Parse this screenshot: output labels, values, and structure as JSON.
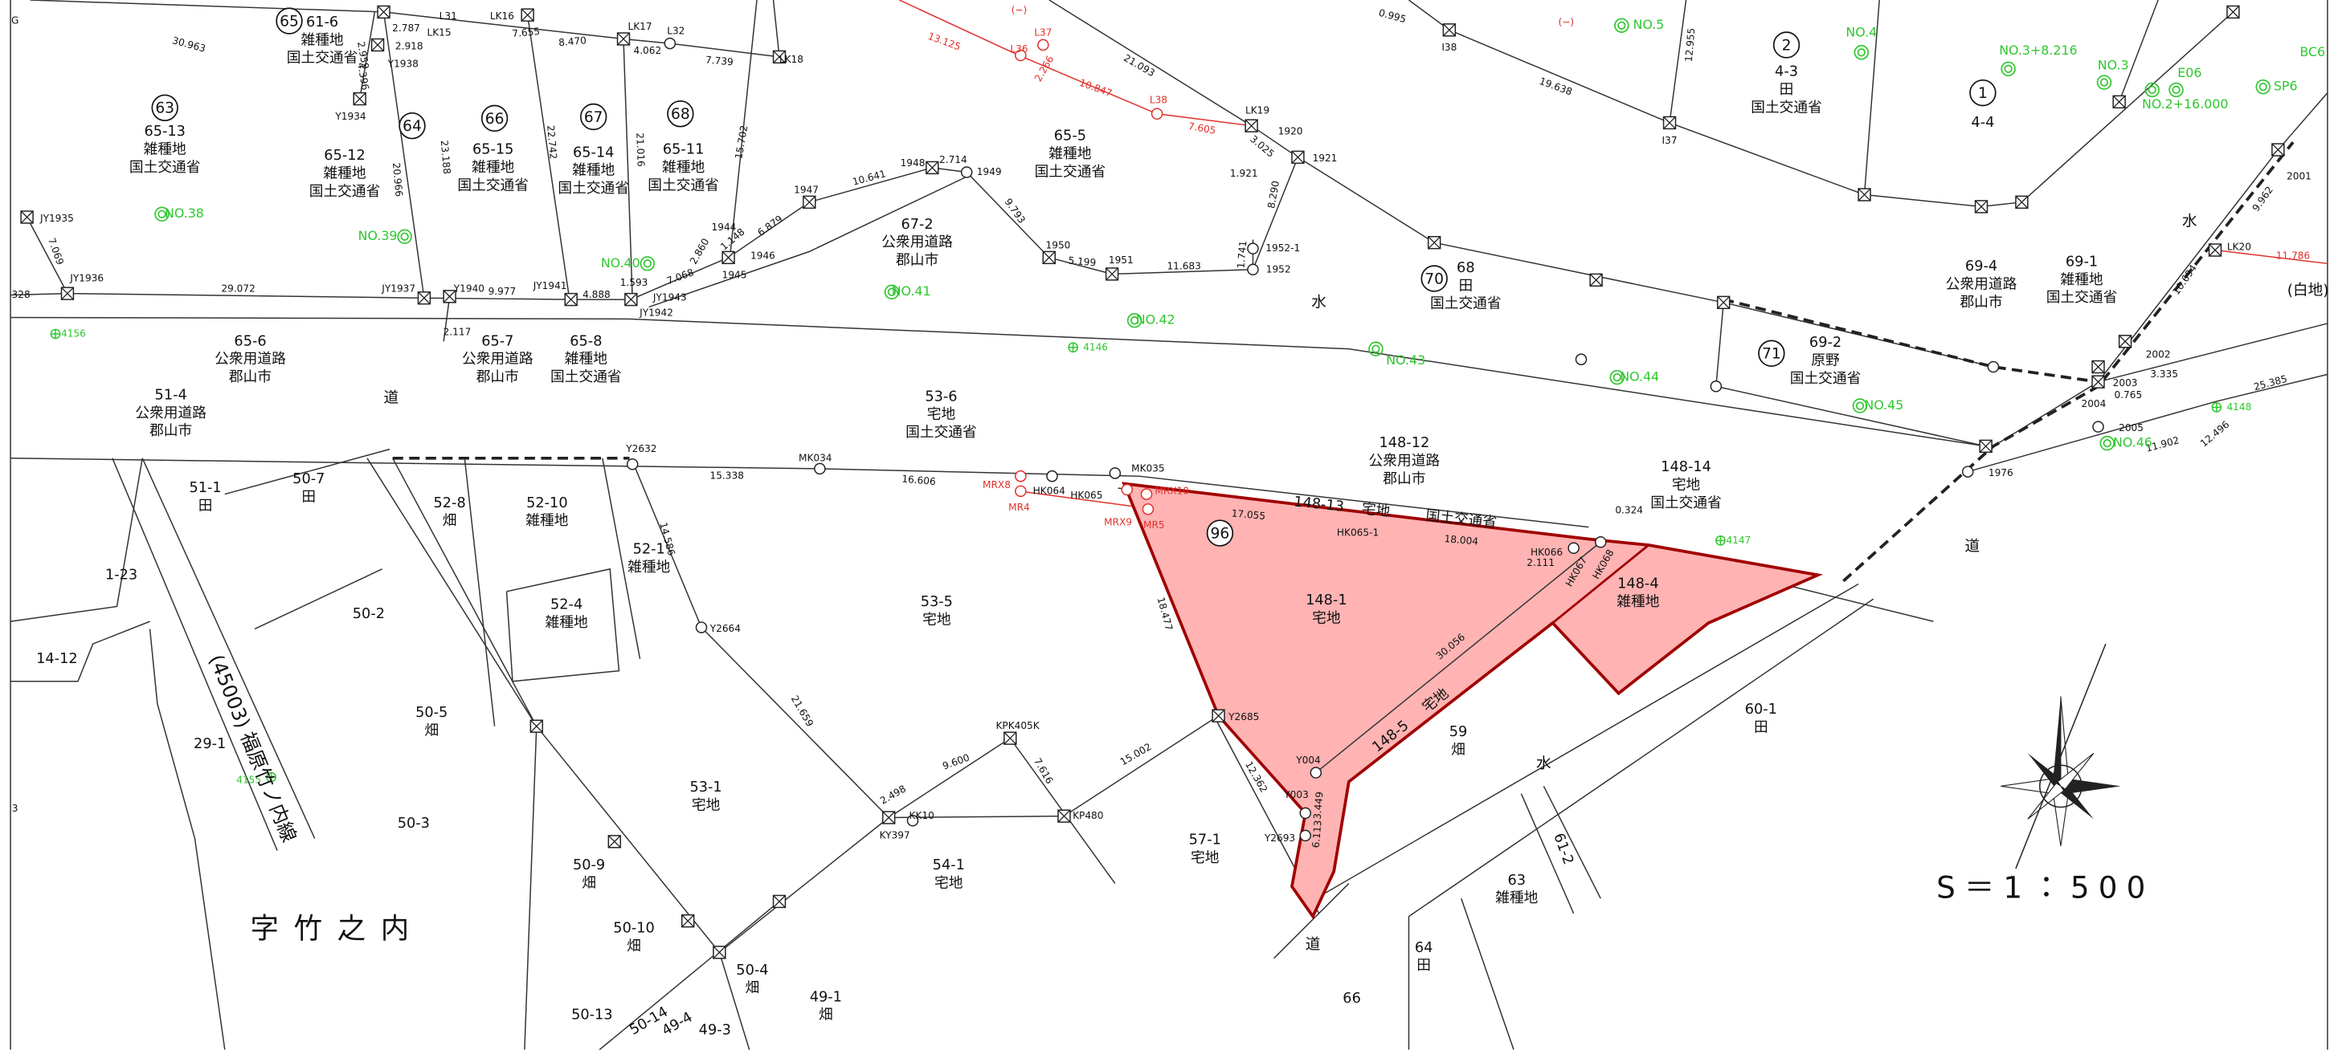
{
  "edge_marks": [
    "G",
    "3"
  ],
  "parcels": [
    {
      "number": "65-13",
      "use": "雑種地",
      "owner": "国土交通省"
    },
    {
      "number": "65-12",
      "use": "雑種地",
      "owner": "国土交通省"
    },
    {
      "number": "65-15",
      "use": "雑種地",
      "owner": "国土交通省"
    },
    {
      "number": "65-14",
      "use": "雑種地",
      "owner": "国土交通省"
    },
    {
      "number": "65-11",
      "use": "雑種地",
      "owner": "国土交通省"
    },
    {
      "number": "61-6",
      "use": "雑種地",
      "owner": "国土交通省"
    },
    {
      "number": "65-5",
      "use": "雑種地",
      "owner": "国土交通省"
    },
    {
      "number": "67-2",
      "use": "公衆用道路",
      "owner": "郡山市"
    },
    {
      "number": "68",
      "use": "田",
      "owner": "国土交通省"
    },
    {
      "number": "69-4",
      "use": "公衆用道路",
      "owner": "郡山市"
    },
    {
      "number": "69-1",
      "use": "雑種地",
      "owner": "国土交通省"
    },
    {
      "number": "69-2",
      "use": "原野",
      "owner": "国土交通省"
    },
    {
      "number": "4-3",
      "use": "田",
      "owner": "国土交通省"
    },
    {
      "number": "4-4"
    },
    {
      "number": "65-6",
      "use": "公衆用道路",
      "owner": "郡山市"
    },
    {
      "number": "65-7",
      "use": "公衆用道路",
      "owner": "郡山市"
    },
    {
      "number": "65-8",
      "use": "雑種地",
      "owner": "国土交通省"
    },
    {
      "number": "51-4",
      "use": "公衆用道路",
      "owner": "郡山市"
    },
    {
      "number": "53-6",
      "use": "宅地",
      "owner": "国土交通省"
    },
    {
      "number": "148-12",
      "use": "公衆用道路",
      "owner": "郡山市"
    },
    {
      "number": "148-14",
      "use": "宅地",
      "owner": "国土交通省"
    },
    {
      "number": "148-1",
      "use": "宅地"
    },
    {
      "number": "148-4",
      "use": "雑種地"
    },
    {
      "number": "51-1",
      "use": "田"
    },
    {
      "number": "50-7",
      "use": "田"
    },
    {
      "number": "52-8",
      "use": "畑"
    },
    {
      "number": "52-10",
      "use": "雑種地"
    },
    {
      "number": "52-1",
      "use": "雑種地"
    },
    {
      "number": "52-4",
      "use": "雑種地"
    },
    {
      "number": "53-5",
      "use": "宅地"
    },
    {
      "number": "50-2"
    },
    {
      "number": "1-23"
    },
    {
      "number": "14-12"
    },
    {
      "number": "50-5",
      "use": "畑"
    },
    {
      "number": "29-1"
    },
    {
      "number": "50-3"
    },
    {
      "number": "53-1",
      "use": "宅地"
    },
    {
      "number": "54-1",
      "use": "宅地"
    },
    {
      "number": "57-1",
      "use": "宅地"
    },
    {
      "number": "59",
      "use": "畑"
    },
    {
      "number": "60-1",
      "use": "田"
    },
    {
      "number": "63",
      "use": "雑種地"
    },
    {
      "number": "64",
      "use": "田"
    },
    {
      "number": "66"
    },
    {
      "number": "50-9",
      "use": "畑"
    },
    {
      "number": "50-10",
      "use": "畑"
    },
    {
      "number": "50-4",
      "use": "畑"
    },
    {
      "number": "49-1",
      "use": "畑"
    },
    {
      "number": "50-13"
    },
    {
      "number": "50-14"
    },
    {
      "number": "49-4"
    },
    {
      "number": "49-3"
    },
    {
      "number": "61-2"
    }
  ],
  "strip_parcels": [
    {
      "number": "148-13",
      "use": "宅地",
      "owner": "国土交通省"
    },
    {
      "number": "148-5",
      "use": "宅地"
    }
  ],
  "map_numbers": [
    "65",
    "63",
    "64",
    "66",
    "67",
    "68",
    "70",
    "71",
    "2",
    "1",
    "96"
  ],
  "survey_points": [
    "Y1934",
    "Y1938",
    "LK15",
    "L31",
    "LK16",
    "LK17",
    "L32",
    "LK18",
    "JY1935",
    "JY1936",
    "JY1937",
    "Y1940",
    "JY1941",
    "JY1942",
    "JY1943",
    "1944",
    "1945",
    "1946",
    "1947",
    "1948",
    "1949",
    "1950",
    "1951",
    "1952",
    "1952-1",
    "LK19",
    "1920",
    "1921",
    "I38",
    "I37",
    "LK20",
    "2001",
    "2002",
    "2003",
    "2004",
    "2005",
    "1976",
    "Y2632",
    "MK034",
    "MK035",
    "HK064",
    "HK065",
    "HK065-1",
    "HK066",
    "HK067",
    "HK068",
    "Y2664",
    "Y2685",
    "Y004",
    "Y003",
    "Y2693",
    "KPK405K",
    "KK10",
    "KY397",
    "KP480"
  ],
  "distances": [
    "30.963",
    "2.787",
    "2.918",
    "7.655",
    "8.470",
    "4.062",
    "7.739",
    "2.959",
    "4.396",
    "20.966",
    "23.188",
    "22.742",
    "21.016",
    "15.702",
    "2.860",
    "1.148",
    "6.879",
    "10.641",
    "2.714",
    "9.793",
    "5.199",
    "11.683",
    "1.741",
    "8.290",
    "3.025",
    "1.921",
    "21.093",
    "0.995",
    "19.638",
    "12.955",
    "10.694",
    "9.962",
    "25.385",
    "12.496",
    "11.902",
    "3.335",
    "0.765",
    "7.069",
    "29.072",
    "2.117",
    "9.977",
    "4.888",
    "1.593",
    "7.068",
    "15.338",
    "16.606",
    "17.055",
    "18.004",
    "2.111",
    "0.324",
    "30.056",
    "18.477",
    "14.586",
    "21.659",
    "9.600",
    "7.616",
    "2.498",
    "15.002",
    "12.362",
    "3.449",
    "6.113",
    "328"
  ],
  "red_labels": [
    "13.125",
    "L36",
    "L37",
    "2.266",
    "10.847",
    "L38",
    "7.605",
    "11.786",
    "MRX8",
    "MR4",
    "MRX9",
    "MR5",
    "MRX10",
    "(−)",
    "(−)"
  ],
  "center_stations": [
    "NO.38",
    "NO.39",
    "NO.40",
    "NO.41",
    "NO.42",
    "NO.43",
    "NO.44",
    "NO.45",
    "NO.46",
    "NO.5",
    "NO.4",
    "NO.3+8.216",
    "NO.3",
    "E06",
    "NO.2+16.000",
    "SP6",
    "BC6"
  ],
  "benchmarks": [
    "4156",
    "4146",
    "4148",
    "4147",
    "4155"
  ],
  "area_labels": [
    "道",
    "道",
    "道",
    "水",
    "水",
    "水",
    "(白地)"
  ],
  "place_name": "字竹之内",
  "route_name": "(45003) 福原竹ノ内線",
  "scale": "S＝1：500"
}
